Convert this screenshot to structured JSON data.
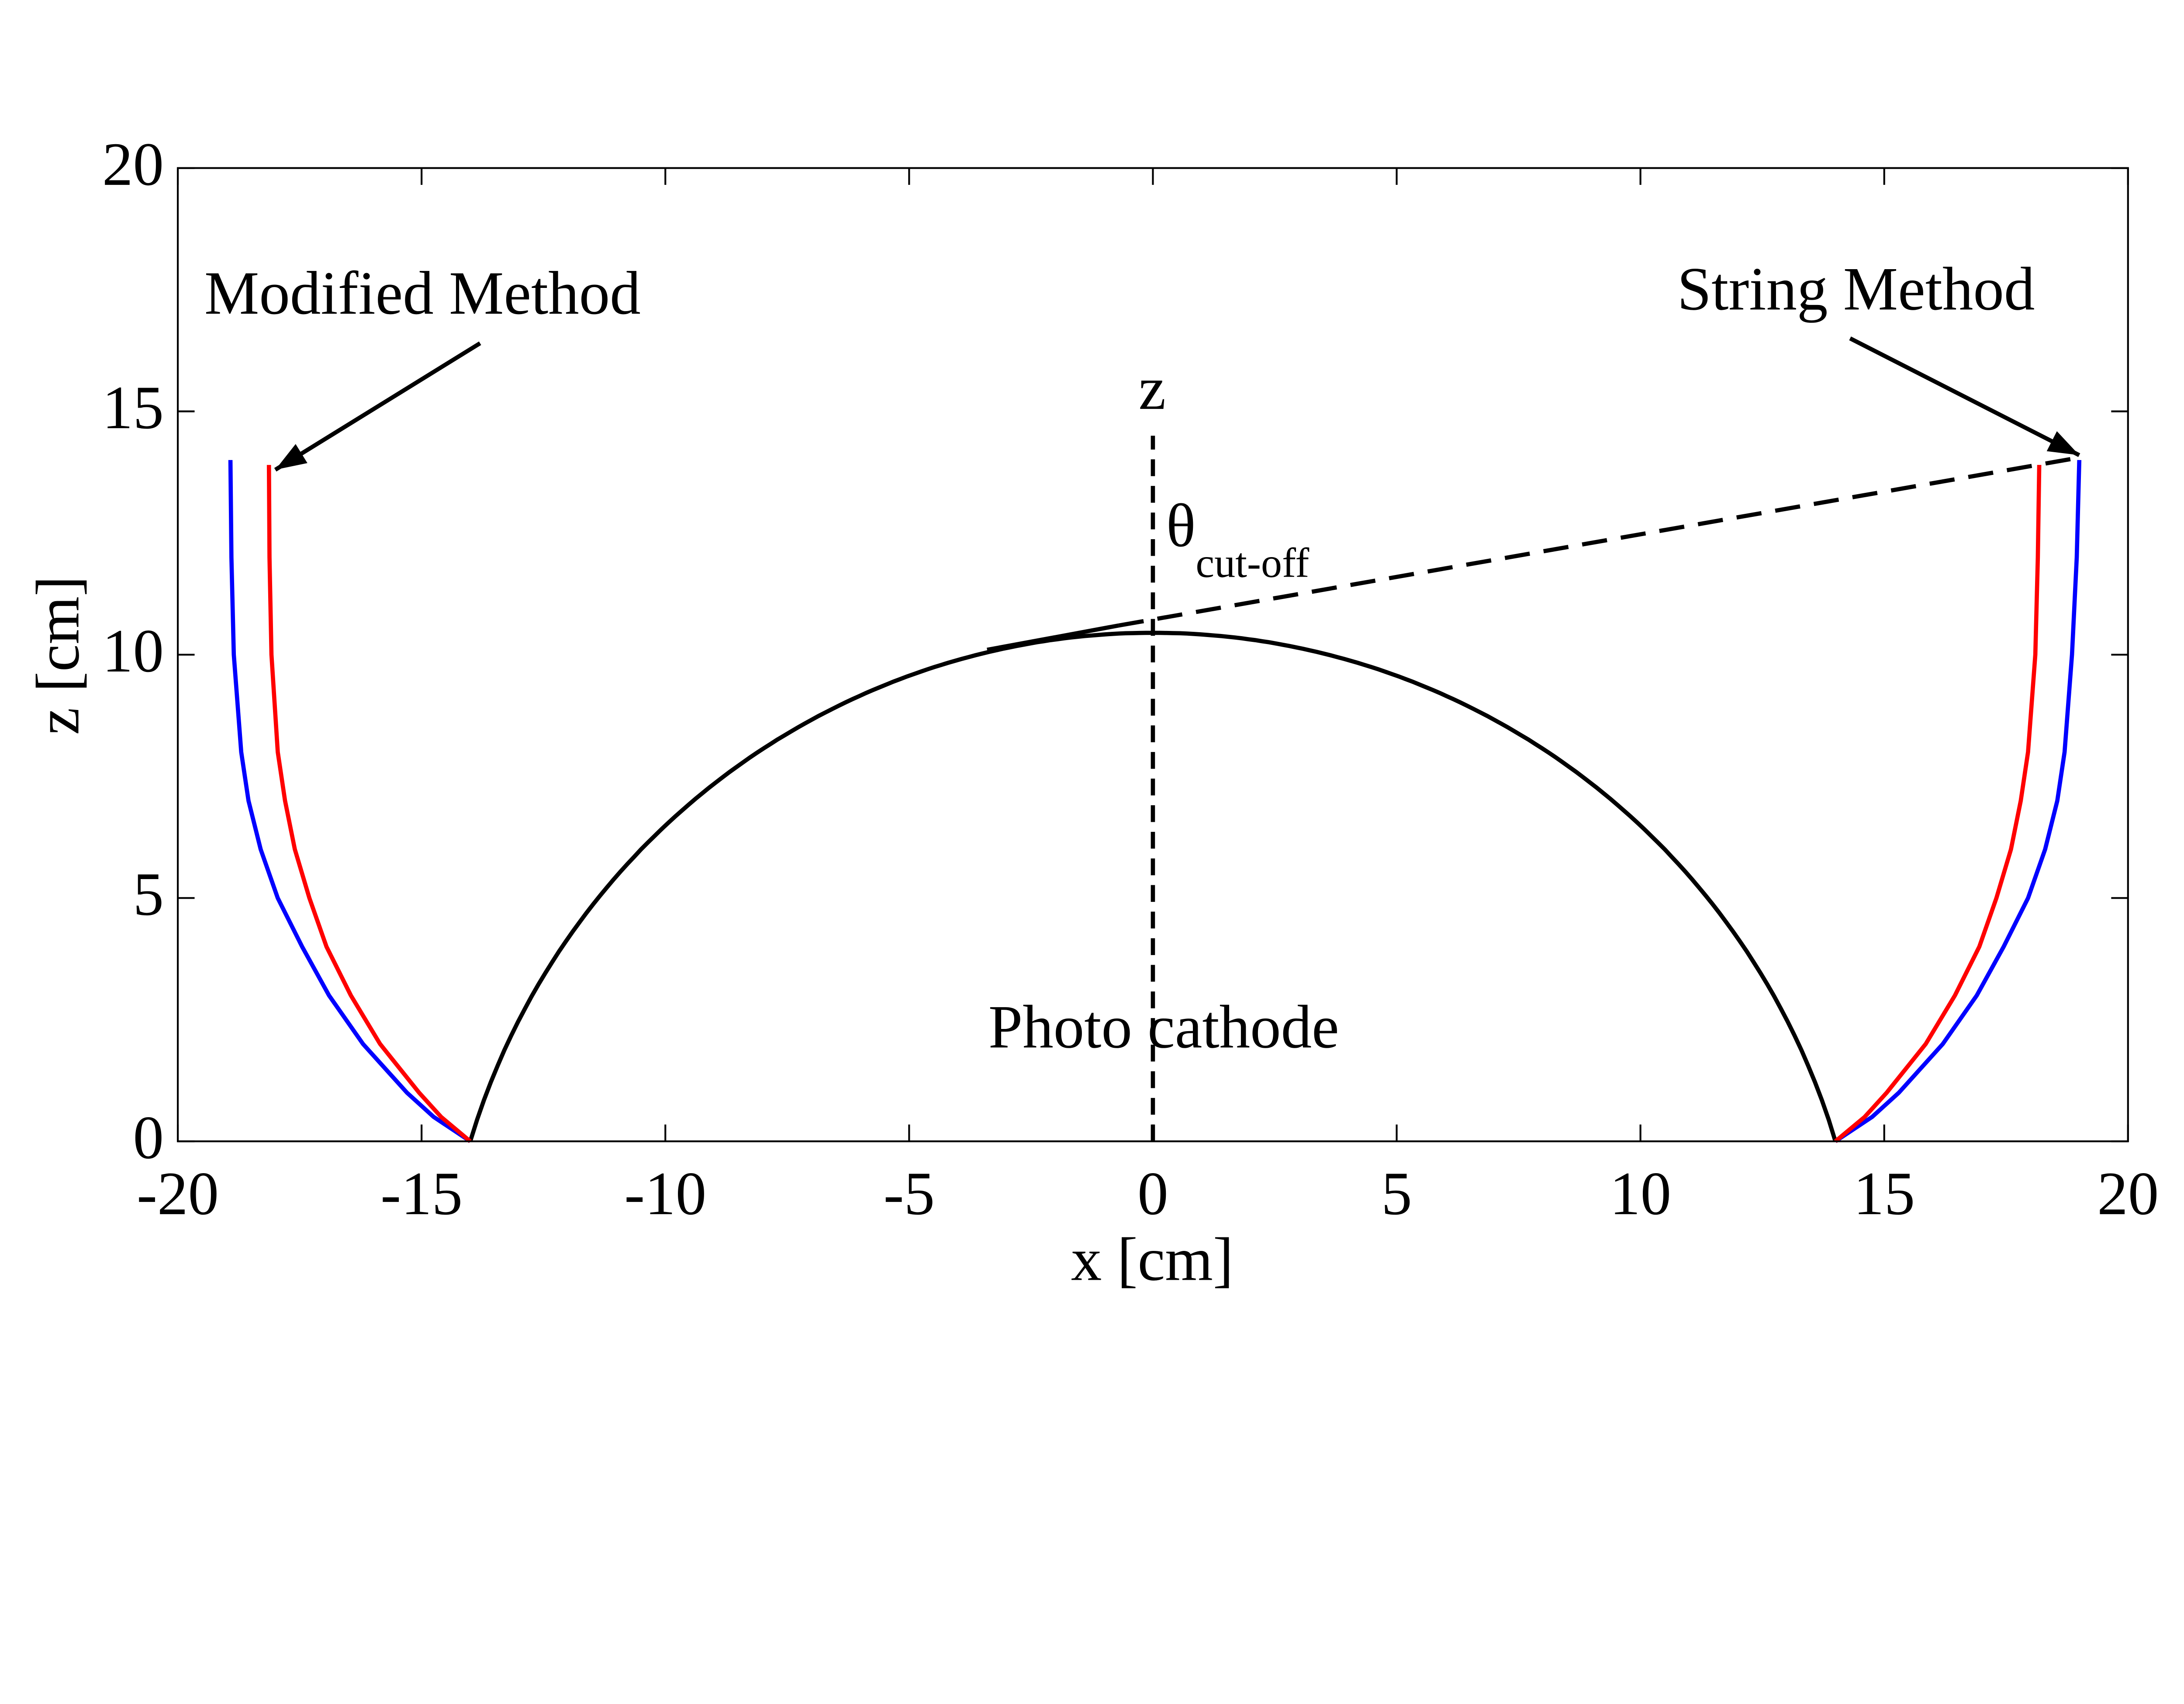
{
  "chart_data": {
    "type": "line",
    "title": "",
    "xlabel": "x [cm]",
    "ylabel": "z [cm]",
    "xlim": [
      -20,
      20
    ],
    "ylim": [
      0,
      20
    ],
    "xticks": [
      "-20",
      "-15",
      "-10",
      "-5",
      "0",
      "5",
      "10",
      "15",
      "20"
    ],
    "yticks": [
      "0",
      "5",
      "10",
      "15",
      "20"
    ],
    "grid": false,
    "colors": {
      "blue": "#0000ff",
      "red": "#ff0000",
      "black": "#000000"
    },
    "photocathode": {
      "x_range": [
        -14,
        14
      ],
      "apex_z": 10.45,
      "label": "Photo cathode"
    },
    "series": [
      {
        "color": "#0000ff",
        "side": "left",
        "points": [
          [
            -14,
            0
          ],
          [
            -14.75,
            0.5
          ],
          [
            -15.3,
            1
          ],
          [
            -16.2,
            2
          ],
          [
            -16.9,
            3
          ],
          [
            -17.45,
            4
          ],
          [
            -17.95,
            5
          ],
          [
            -18.3,
            6
          ],
          [
            -18.55,
            7
          ],
          [
            -18.7,
            8
          ],
          [
            -18.85,
            10
          ],
          [
            -18.9,
            12
          ],
          [
            -18.92,
            14
          ]
        ]
      },
      {
        "color": "#ff0000",
        "side": "left",
        "points": [
          [
            -14,
            0
          ],
          [
            -14.6,
            0.5
          ],
          [
            -15.05,
            1
          ],
          [
            -15.85,
            2
          ],
          [
            -16.45,
            3
          ],
          [
            -16.95,
            4
          ],
          [
            -17.3,
            5
          ],
          [
            -17.6,
            6
          ],
          [
            -17.8,
            7
          ],
          [
            -17.95,
            8
          ],
          [
            -18.08,
            10
          ],
          [
            -18.12,
            12
          ],
          [
            -18.13,
            13.9
          ]
        ]
      },
      {
        "color": "#0000ff",
        "side": "right",
        "points": [
          [
            14,
            0
          ],
          [
            14.75,
            0.5
          ],
          [
            15.3,
            1
          ],
          [
            16.2,
            2
          ],
          [
            16.9,
            3
          ],
          [
            17.45,
            4
          ],
          [
            17.95,
            5
          ],
          [
            18.3,
            6
          ],
          [
            18.55,
            7
          ],
          [
            18.7,
            8
          ],
          [
            18.85,
            10
          ],
          [
            18.95,
            12
          ],
          [
            19.0,
            14
          ]
        ]
      },
      {
        "color": "#ff0000",
        "side": "right",
        "points": [
          [
            14,
            0
          ],
          [
            14.6,
            0.5
          ],
          [
            15.05,
            1
          ],
          [
            15.85,
            2
          ],
          [
            16.45,
            3
          ],
          [
            16.95,
            4
          ],
          [
            17.3,
            5
          ],
          [
            17.6,
            6
          ],
          [
            17.8,
            7
          ],
          [
            17.95,
            8
          ],
          [
            18.1,
            10
          ],
          [
            18.15,
            12
          ],
          [
            18.18,
            13.9
          ]
        ]
      }
    ],
    "cutoff_line": {
      "solid_from": [
        -3.4,
        10.1
      ],
      "dash_from": [
        -0.7,
        10.6
      ],
      "to": [
        19.0,
        14.05
      ]
    },
    "z_axis_line": {
      "x": 0,
      "z_from": 0,
      "z_to": 14.5,
      "label": "z"
    },
    "annotations": [
      {
        "text": "Modified Method",
        "arrow_from": [
          -13.8,
          16.4
        ],
        "arrow_to": [
          -18.0,
          13.8
        ]
      },
      {
        "text": "String Method",
        "arrow_from": [
          14.3,
          16.5
        ],
        "arrow_to": [
          19.0,
          14.1
        ]
      }
    ],
    "theta_label": {
      "symbol": "θ",
      "subscript": "cut-off"
    }
  }
}
